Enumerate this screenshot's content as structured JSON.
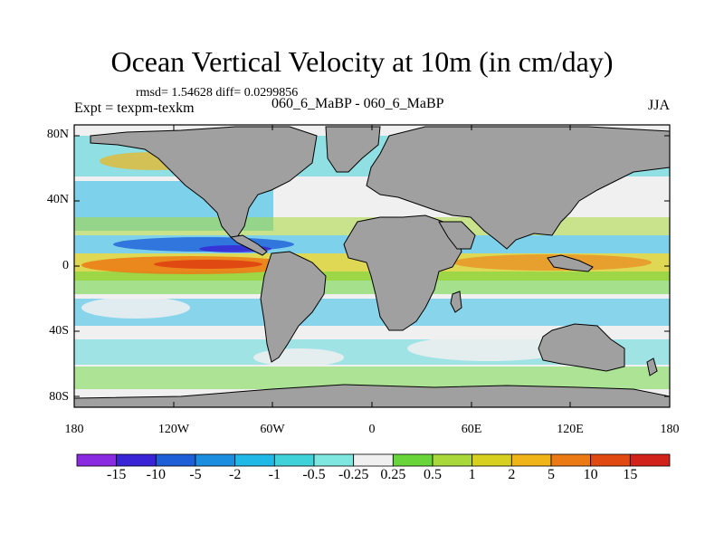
{
  "title": "Ocean Vertical Velocity at 10m (in cm/day)",
  "stats": "rmsd= 1.54628 diff= 0.0299856",
  "left_label": "Expt = texpm-texkm",
  "center_label": "060_6_MaBP - 060_6_MaBP",
  "season": "JJA",
  "y_ticks": [
    "80N",
    "40N",
    "0",
    "40S",
    "80S"
  ],
  "x_ticks": [
    "180",
    "120W",
    "60W",
    "0",
    "60E",
    "120E",
    "180"
  ],
  "colorbar": {
    "labels": [
      "-15",
      "-10",
      "-5",
      "-2",
      "-1",
      "-0.5",
      "-0.25",
      "0.25",
      "0.5",
      "1",
      "2",
      "5",
      "10",
      "15"
    ],
    "colors": [
      "#8a2be2",
      "#3a24d6",
      "#1e5fd8",
      "#1c8ee0",
      "#20b8e6",
      "#3fd2d8",
      "#7fe6e0",
      "#f0f0f0",
      "#68d63a",
      "#a8d83a",
      "#d8d020",
      "#f0b418",
      "#ec7a14",
      "#e04a12",
      "#d2231a"
    ]
  },
  "colors": {
    "land": "#a0a0a0",
    "neutral": "#f0f0f0"
  }
}
